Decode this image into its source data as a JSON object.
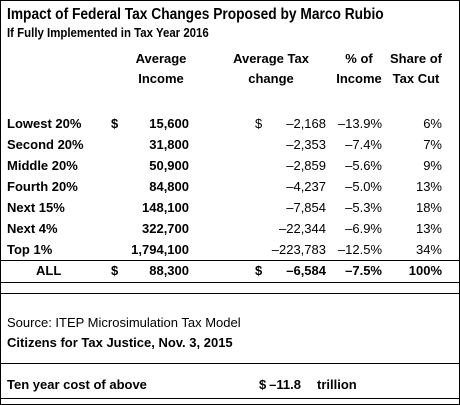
{
  "header": {
    "title": "Impact of Federal Tax Changes Proposed by Marco Rubio",
    "subtitle": "If Fully Implemented in Tax Year 2016"
  },
  "table": {
    "columns": [
      [
        "Average",
        "Income"
      ],
      [
        "Average Tax",
        "change"
      ],
      [
        "% of",
        "Income"
      ],
      [
        "Share of",
        "Tax Cut"
      ]
    ],
    "rows": [
      {
        "label": "Lowest 20%",
        "income_currency": "$",
        "income": "15,600",
        "tax_currency": "$",
        "tax": "–2,168",
        "pct": "–13.9%",
        "share": "6%"
      },
      {
        "label": "Second 20%",
        "income": "31,800",
        "tax": "–2,353",
        "pct": "–7.4%",
        "share": "7%"
      },
      {
        "label": "Middle 20%",
        "income": "50,900",
        "tax": "–2,859",
        "pct": "–5.6%",
        "share": "9%"
      },
      {
        "label": "Fourth 20%",
        "income": "84,800",
        "tax": "–4,237",
        "pct": "–5.0%",
        "share": "13%"
      },
      {
        "label": "Next 15%",
        "income": "148,100",
        "tax": "–7,854",
        "pct": "–5.3%",
        "share": "18%"
      },
      {
        "label": "Next 4%",
        "income": "322,700",
        "tax": "–22,344",
        "pct": "–6.9%",
        "share": "13%"
      },
      {
        "label": "Top 1%",
        "income": "1,794,100",
        "tax": "–223,783",
        "pct": "–12.5%",
        "share": "34%"
      },
      {
        "label": "ALL",
        "income_currency": "$",
        "income": "88,300",
        "tax_currency": "$",
        "tax": "–6,584",
        "pct": "–7.5%",
        "share": "100%"
      }
    ]
  },
  "footer": {
    "source": "Source: ITEP Microsimulation Tax Model",
    "credit": "Citizens for Tax Justice, Nov. 3, 2015",
    "cost_label": "Ten year cost of above",
    "cost_currency": "$",
    "cost_value": "–11.8",
    "cost_unit": "trillion"
  }
}
